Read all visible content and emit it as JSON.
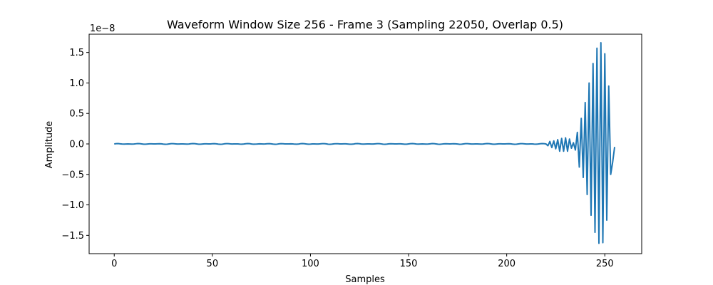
{
  "chart_data": {
    "type": "line",
    "title": "Waveform Window Size 256 - Frame 3 (Sampling 22050, Overlap 0.5)",
    "xlabel": "Samples",
    "ylabel": "Amplitude",
    "offset_text": "1e−8",
    "xlim": [
      -12.8,
      268.8
    ],
    "ylim": [
      -1.8,
      1.8
    ],
    "xticks": [
      0,
      50,
      100,
      150,
      200,
      250
    ],
    "xtick_labels": [
      "0",
      "50",
      "100",
      "150",
      "200",
      "250"
    ],
    "yticks": [
      -1.5,
      -1.0,
      -0.5,
      0.0,
      0.5,
      1.0,
      1.5
    ],
    "ytick_labels": [
      "−1.5",
      "−1.0",
      "−0.5",
      "0.0",
      "0.5",
      "1.0",
      "1.5"
    ],
    "grid": false,
    "color": "#1f77b4",
    "series": [
      {
        "x": [
          220,
          221,
          222,
          223,
          224,
          225,
          226,
          227,
          228,
          229,
          230,
          231,
          232,
          233,
          234,
          235,
          236,
          237,
          238,
          239,
          240,
          241,
          242,
          243,
          244,
          245,
          246,
          247,
          248,
          249,
          250,
          251,
          252,
          253,
          254,
          255
        ],
        "y": [
          0.0,
          -0.03,
          0.04,
          -0.06,
          0.05,
          -0.08,
          0.07,
          -0.12,
          0.09,
          -0.12,
          0.1,
          -0.12,
          0.08,
          -0.07,
          0.02,
          -0.1,
          0.19,
          -0.38,
          0.42,
          -0.55,
          0.68,
          -0.83,
          1.0,
          -1.17,
          1.32,
          -1.45,
          1.57,
          -1.63,
          1.66,
          -1.62,
          1.48,
          -1.25,
          0.95,
          -0.5,
          -0.3,
          -0.05
        ],
        "baseline_from": 0,
        "baseline_to": 219,
        "baseline_value": 0.0
      }
    ]
  }
}
